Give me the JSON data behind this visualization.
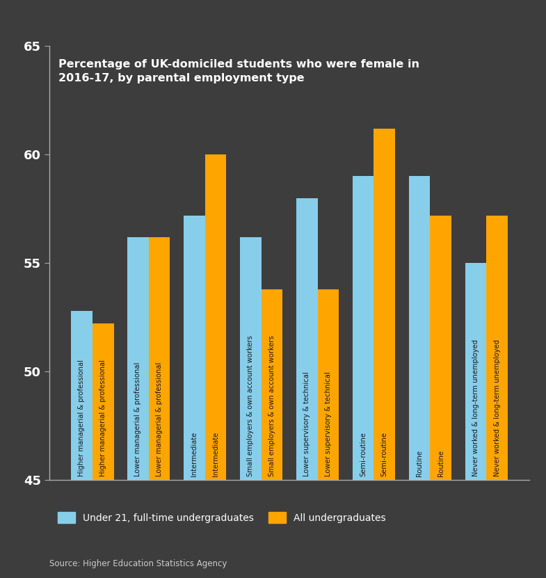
{
  "title": "Percentage of UK-domiciled students who were female in\n2016-17, by parental employment type",
  "categories": [
    "Higher managerial & professional",
    "Lower managerial & professional",
    "Intermediate",
    "Small employers & own account workers",
    "Lower supervisory & technical",
    "Semi-routine",
    "Routine",
    "Never worked & long-term unemployed"
  ],
  "under21_values": [
    52.8,
    56.2,
    57.2,
    56.2,
    58.0,
    59.0,
    59.0,
    55.0
  ],
  "all_values": [
    52.2,
    56.2,
    60.0,
    53.8,
    53.8,
    61.2,
    57.2,
    57.2
  ],
  "under21_color": "#87CEEB",
  "all_color": "#FFA500",
  "background_color": "#3d3d3d",
  "text_color": "#ffffff",
  "ylim": [
    45,
    65
  ],
  "yticks": [
    45,
    50,
    55,
    60,
    65
  ],
  "source": "Source: Higher Education Statistics Agency",
  "legend_under21": "Under 21, full-time undergraduates",
  "legend_all": "All undergraduates"
}
